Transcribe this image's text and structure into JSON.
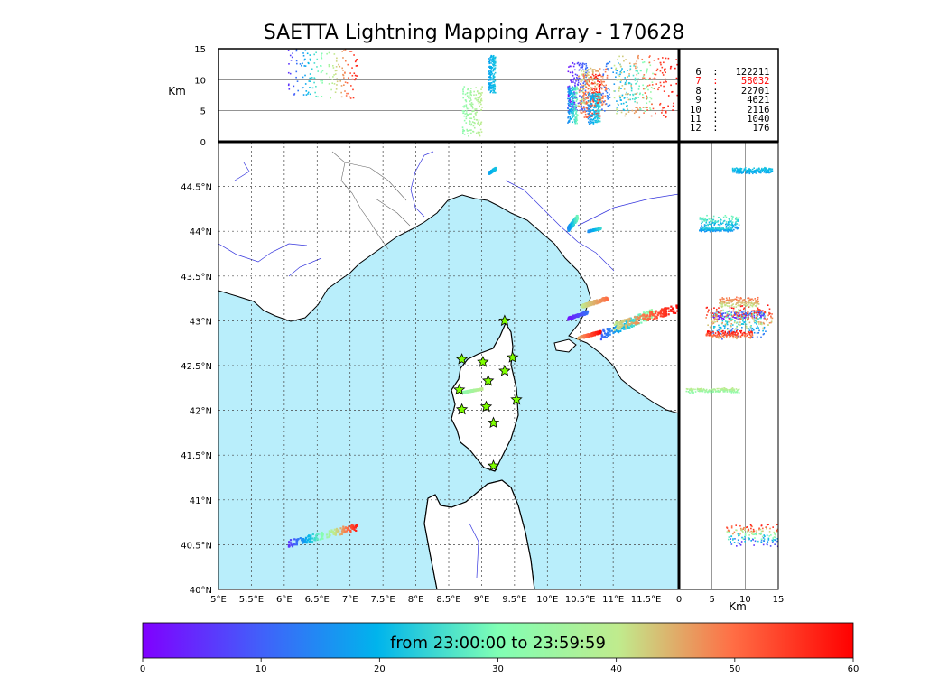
{
  "title": "SAETTA Lightning Mapping Array - 170628",
  "colorbar": {
    "label": "from 23:00:00 to 23:59:59",
    "ticks": [
      "0",
      "10",
      "20",
      "30",
      "40",
      "50",
      "60"
    ],
    "range": [
      0,
      60
    ]
  },
  "legend": [
    {
      "text": " 6  :   122211",
      "color": "#000000"
    },
    {
      "text": " 7  :    58032",
      "color": "#ff0000"
    },
    {
      "text": " 8  :    22701",
      "color": "#000000"
    },
    {
      "text": " 9  :     4621",
      "color": "#000000"
    },
    {
      "text": "10  :     2116",
      "color": "#000000"
    },
    {
      "text": "11  :     1040",
      "color": "#000000"
    },
    {
      "text": "12  :      176",
      "color": "#000000"
    }
  ],
  "chart_data": {
    "type": "scatter",
    "title": "SAETTA Lightning Mapping Array - 170628",
    "map": {
      "lon_range": [
        5,
        12
      ],
      "lat_range": [
        40,
        45
      ],
      "lon_ticks": [
        "5°E",
        "5.5°E",
        "6°E",
        "6.5°E",
        "7°E",
        "7.5°E",
        "8°E",
        "8.5°E",
        "9°E",
        "9.5°E",
        "10°E",
        "10.5°E",
        "11°E",
        "11.5°E"
      ],
      "lat_ticks": [
        "40°N",
        "40.5°N",
        "41°N",
        "41.5°N",
        "42°N",
        "42.5°N",
        "43°N",
        "43.5°N",
        "44°N",
        "44.5°N"
      ],
      "grid": true,
      "sea_color": "#b9eefb",
      "land_color": "#ffffff"
    },
    "top_panel": {
      "ylabel": "Km",
      "ylim": [
        0,
        15
      ],
      "yticks": [
        "0",
        "5",
        "10",
        "15"
      ]
    },
    "side_panel": {
      "xlabel": "Km",
      "xlim": [
        0,
        15
      ],
      "xticks": [
        "0",
        "5",
        "10",
        "15"
      ]
    },
    "stations": [
      {
        "lon": 9.35,
        "lat": 43.0
      },
      {
        "lon": 8.7,
        "lat": 42.57
      },
      {
        "lon": 9.02,
        "lat": 42.54
      },
      {
        "lon": 9.47,
        "lat": 42.59
      },
      {
        "lon": 9.35,
        "lat": 42.44
      },
      {
        "lon": 9.1,
        "lat": 42.33
      },
      {
        "lon": 8.66,
        "lat": 42.23
      },
      {
        "lon": 9.53,
        "lat": 42.12
      },
      {
        "lon": 9.07,
        "lat": 42.04
      },
      {
        "lon": 8.7,
        "lat": 42.01
      },
      {
        "lon": 9.18,
        "lat": 41.86
      },
      {
        "lon": 9.18,
        "lat": 41.38
      }
    ],
    "clusters": [
      {
        "lon": [
          6.05,
          7.1
        ],
        "lat": [
          40.48,
          40.75
        ],
        "t": [
          5,
          58
        ],
        "alt": [
          7,
          15
        ]
      },
      {
        "lon": [
          10.3,
          10.6
        ],
        "lat": [
          43.02,
          43.12
        ],
        "t": [
          2,
          12
        ],
        "alt": [
          5,
          13
        ]
      },
      {
        "lon": [
          10.5,
          10.9
        ],
        "lat": [
          43.15,
          43.28
        ],
        "t": [
          40,
          50
        ],
        "alt": [
          6,
          12
        ]
      },
      {
        "lon": [
          10.8,
          11.6
        ],
        "lat": [
          42.8,
          43.15
        ],
        "t": [
          10,
          35
        ],
        "alt": [
          5,
          13
        ]
      },
      {
        "lon": [
          11.0,
          12.0
        ],
        "lat": [
          42.9,
          43.2
        ],
        "t": [
          40,
          60
        ],
        "alt": [
          4,
          14
        ]
      },
      {
        "lon": [
          10.45,
          10.8
        ],
        "lat": [
          42.8,
          42.9
        ],
        "t": [
          45,
          60
        ],
        "alt": [
          4,
          11
        ]
      },
      {
        "lon": [
          10.3,
          10.45
        ],
        "lat": [
          44.0,
          44.2
        ],
        "t": [
          15,
          30
        ],
        "alt": [
          3,
          9
        ]
      },
      {
        "lon": [
          10.6,
          10.8
        ],
        "lat": [
          44.0,
          44.05
        ],
        "t": [
          15,
          25
        ],
        "alt": [
          3,
          8
        ]
      },
      {
        "lon": [
          9.1,
          9.2
        ],
        "lat": [
          44.65,
          44.72
        ],
        "t": [
          18,
          22
        ],
        "alt": [
          8,
          14
        ]
      },
      {
        "lon": [
          8.7,
          9.0
        ],
        "lat": [
          42.2,
          42.26
        ],
        "t": [
          32,
          40
        ],
        "alt": [
          1,
          9
        ]
      }
    ]
  }
}
